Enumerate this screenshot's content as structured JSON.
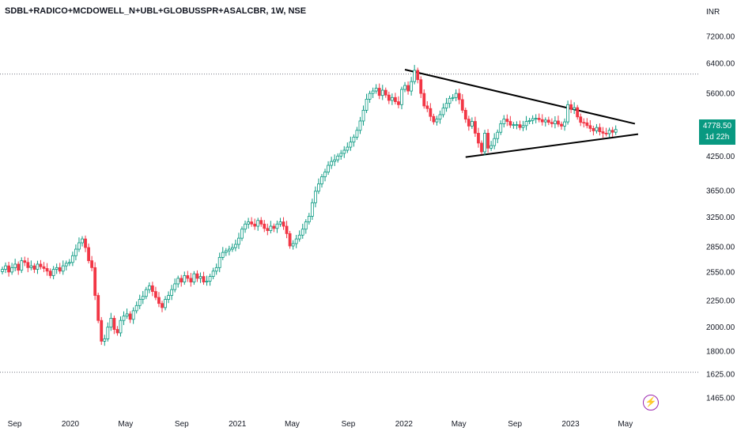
{
  "chart_data": {
    "type": "candlestick",
    "title": "SDBL+RADICO+MCDOWELL_N+UBL+GLOBUSSPR+ASALCBR, 1W, NSE",
    "currency_label": "INR",
    "y_scale": "log",
    "y_ticks": [
      "7200.00",
      "6400.00",
      "5600.00",
      "4250.00",
      "3650.00",
      "3250.00",
      "2850.00",
      "2550.00",
      "2250.00",
      "2000.00",
      "1800.00",
      "1625.00",
      "1465.00"
    ],
    "x_ticks": [
      "Sep",
      "2020",
      "May",
      "Sep",
      "2021",
      "May",
      "Sep",
      "2022",
      "May",
      "Sep",
      "2023",
      "May"
    ],
    "last_price": "4778.50",
    "countdown": "1d 22h",
    "reference_levels": [
      6100,
      1640
    ],
    "colors": {
      "up": "#089981",
      "down": "#f23645",
      "trendline": "#000000",
      "ref_line": "#787b86"
    },
    "trendlines": [
      {
        "from": {
          "x": "2022-01-03",
          "y": 6220
        },
        "to": {
          "x": "2023-05-22",
          "y": 4900
        }
      },
      {
        "from": {
          "x": "2022-05-16",
          "y": 4230
        },
        "to": {
          "x": "2023-05-29",
          "y": 4680
        }
      }
    ],
    "weekly_closes": [
      2580,
      2620,
      2550,
      2600,
      2640,
      2570,
      2680,
      2660,
      2600,
      2620,
      2580,
      2640,
      2610,
      2590,
      2560,
      2510,
      2580,
      2600,
      2560,
      2620,
      2650,
      2660,
      2740,
      2820,
      2900,
      2950,
      2840,
      2680,
      2600,
      2300,
      2060,
      1880,
      1900,
      2000,
      2080,
      1980,
      1950,
      2060,
      2100,
      2120,
      2070,
      2150,
      2200,
      2260,
      2290,
      2360,
      2400,
      2340,
      2280,
      2220,
      2180,
      2260,
      2300,
      2360,
      2420,
      2480,
      2440,
      2510,
      2480,
      2440,
      2530,
      2480,
      2500,
      2440,
      2450,
      2500,
      2560,
      2600,
      2720,
      2780,
      2800,
      2820,
      2840,
      2880,
      2960,
      3080,
      3150,
      3180,
      3150,
      3120,
      3200,
      3150,
      3090,
      3060,
      3120,
      3090,
      3150,
      3180,
      3120,
      3020,
      2860,
      2890,
      2950,
      3000,
      3080,
      3180,
      3260,
      3460,
      3640,
      3760,
      3880,
      3960,
      4080,
      4150,
      4180,
      4250,
      4300,
      4360,
      4420,
      4520,
      4620,
      4760,
      4960,
      5200,
      5460,
      5600,
      5660,
      5730,
      5550,
      5680,
      5560,
      5430,
      5500,
      5400,
      5330,
      5700,
      5800,
      5660,
      5900,
      6200,
      5950,
      5600,
      5300,
      5240,
      5060,
      4940,
      5000,
      5100,
      5250,
      5360,
      5480,
      5500,
      5600,
      5450,
      5200,
      5000,
      4850,
      4950,
      4700,
      4500,
      4330,
      4700,
      4400,
      4450,
      4590,
      4720,
      4900,
      5000,
      4950,
      4870,
      4880,
      4880,
      4820,
      4860,
      4950,
      4970,
      5010,
      5020,
      4990,
      4940,
      4980,
      4930,
      4900,
      4960,
      4890,
      4850,
      4940,
      5330,
      5220,
      5260,
      5050,
      4930,
      4920,
      4860,
      4800,
      4750,
      4820,
      4730,
      4700,
      4690,
      4760,
      4720,
      4778.5
    ]
  }
}
